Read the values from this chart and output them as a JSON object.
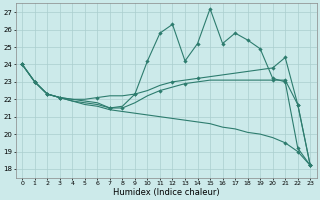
{
  "xlabel": "Humidex (Indice chaleur)",
  "background_color": "#cceaea",
  "grid_color": "#aacece",
  "line_color": "#2d7c6e",
  "xlim": [
    -0.5,
    23.5
  ],
  "ylim": [
    17.5,
    27.5
  ],
  "yticks": [
    18,
    19,
    20,
    21,
    22,
    23,
    24,
    25,
    26,
    27
  ],
  "xticks": [
    0,
    1,
    2,
    3,
    4,
    5,
    6,
    7,
    8,
    9,
    10,
    11,
    12,
    13,
    14,
    15,
    16,
    17,
    18,
    19,
    20,
    21,
    22,
    23
  ],
  "line1_x": [
    0,
    1,
    2,
    3,
    4,
    5,
    6,
    7,
    8,
    9,
    10,
    11,
    12,
    13,
    14,
    15,
    16,
    17,
    18,
    19,
    20,
    21,
    22,
    23
  ],
  "line1_y": [
    24.0,
    23.0,
    22.3,
    22.1,
    21.9,
    21.7,
    21.6,
    21.4,
    21.3,
    21.2,
    21.1,
    21.0,
    20.9,
    20.8,
    20.7,
    20.6,
    20.4,
    20.3,
    20.1,
    20.0,
    19.8,
    19.5,
    19.0,
    18.2
  ],
  "line1_markers_x": [
    0,
    1,
    21,
    22,
    23
  ],
  "line1_markers_y": [
    24.0,
    23.0,
    19.5,
    19.0,
    18.2
  ],
  "line2_x": [
    0,
    1,
    2,
    3,
    4,
    5,
    6,
    7,
    8,
    9,
    10,
    11,
    12,
    13,
    14,
    15,
    16,
    17,
    18,
    19,
    20,
    21,
    22,
    23
  ],
  "line2_y": [
    24.0,
    23.0,
    22.3,
    22.1,
    21.9,
    21.8,
    21.7,
    21.5,
    21.5,
    21.8,
    22.2,
    22.5,
    22.7,
    22.9,
    23.0,
    23.1,
    23.1,
    23.1,
    23.1,
    23.1,
    23.1,
    23.1,
    21.7,
    18.2
  ],
  "line2_markers_x": [
    0,
    1,
    2,
    3,
    7,
    8,
    11,
    13,
    20,
    21,
    22,
    23
  ],
  "line2_markers_y": [
    24.0,
    23.0,
    22.3,
    22.1,
    21.5,
    21.5,
    22.5,
    22.9,
    23.1,
    23.1,
    21.7,
    18.2
  ],
  "line3_x": [
    0,
    1,
    2,
    3,
    4,
    5,
    6,
    7,
    8,
    9,
    10,
    11,
    12,
    13,
    14,
    15,
    16,
    17,
    18,
    19,
    20,
    21,
    22,
    23
  ],
  "line3_y": [
    24.0,
    23.0,
    22.3,
    22.1,
    22.0,
    22.0,
    22.1,
    22.2,
    22.2,
    22.3,
    22.5,
    22.8,
    23.0,
    23.1,
    23.2,
    23.3,
    23.4,
    23.5,
    23.6,
    23.7,
    23.8,
    24.4,
    21.7,
    18.2
  ],
  "line3_markers_x": [
    0,
    1,
    2,
    3,
    6,
    9,
    12,
    14,
    20,
    21,
    22,
    23
  ],
  "line3_markers_y": [
    24.0,
    23.0,
    22.3,
    22.1,
    22.1,
    22.3,
    23.0,
    23.2,
    23.8,
    24.4,
    21.7,
    18.2
  ],
  "line4_x": [
    0,
    1,
    2,
    3,
    4,
    5,
    6,
    7,
    8,
    9,
    10,
    11,
    12,
    13,
    14,
    15,
    16,
    17,
    18,
    19,
    20,
    21,
    22,
    23
  ],
  "line4_y": [
    24.0,
    23.0,
    22.3,
    22.1,
    22.0,
    21.9,
    21.8,
    21.5,
    21.6,
    22.3,
    24.2,
    25.8,
    26.3,
    24.2,
    25.2,
    27.2,
    25.2,
    25.8,
    25.4,
    24.9,
    23.2,
    23.0,
    19.2,
    18.2
  ],
  "line4_markers_x": [
    0,
    1,
    2,
    3,
    7,
    9,
    10,
    11,
    12,
    13,
    14,
    15,
    16,
    17,
    18,
    19,
    20,
    21,
    22,
    23
  ],
  "line4_markers_y": [
    24.0,
    23.0,
    22.3,
    22.1,
    21.5,
    22.3,
    24.2,
    25.8,
    26.3,
    24.2,
    25.2,
    27.2,
    25.2,
    25.8,
    25.4,
    24.9,
    23.2,
    23.0,
    19.2,
    18.2
  ]
}
